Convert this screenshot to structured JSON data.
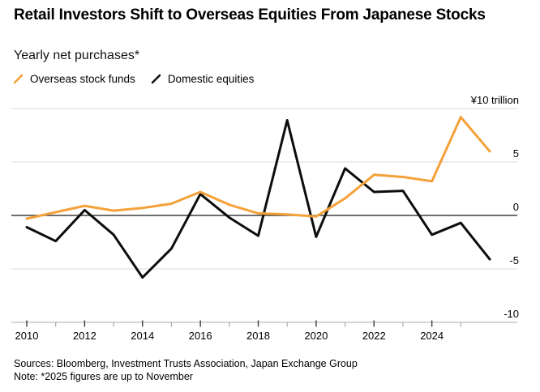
{
  "header": {
    "title": "Retail Investors Shift to Overseas Equities From Japanese Stocks",
    "subtitle": "Yearly net purchases*"
  },
  "legend": {
    "items": [
      {
        "label": "Overseas stock funds",
        "color": "#F4A13A"
      },
      {
        "label": "Domestic equities",
        "color": "#0D0D0D"
      }
    ]
  },
  "footer": {
    "sources": "Sources: Bloomberg, Investment Trusts Association, Japan Exchange Group",
    "note": "Note: *2025 figures are up to November"
  },
  "chart_data": {
    "type": "line",
    "title": "Retail Investors Shift to Overseas Equities From Japanese Stocks",
    "subtitle": "Yearly net purchases*",
    "unit_label": "¥10 trillion",
    "ylim": [
      -10,
      10
    ],
    "grid": "horizontal",
    "legend_position": "top-left",
    "x_axis_tick_labels": [
      "2010",
      "2012",
      "2014",
      "2016",
      "2018",
      "2020",
      "2022",
      "2024"
    ],
    "x_minor_tick_years": [
      "2011",
      "2013",
      "2015",
      "2017",
      "2019",
      "2021",
      "2023",
      "2025"
    ],
    "y_ticks": [
      {
        "value": 10,
        "label": "¥10 trillion"
      },
      {
        "value": 5,
        "label": "5"
      },
      {
        "value": 0,
        "label": "0"
      },
      {
        "value": -5,
        "label": "-5"
      },
      {
        "value": -10,
        "label": "-10"
      }
    ],
    "x_points": [
      "2009",
      "2010",
      "2011",
      "2012",
      "2013",
      "2014",
      "2015",
      "2016",
      "2017",
      "2018",
      "2019",
      "2020",
      "2021",
      "2022",
      "2023",
      "2024",
      "2025 (Jan–Nov)"
    ],
    "x_note": "17 yearly points plotted at year-end positions; final point is 2025 through November",
    "series": [
      {
        "name": "Domestic equities",
        "color": "#0D0D0D",
        "values": [
          -1.1,
          -2.4,
          0.5,
          -1.8,
          -5.8,
          -3.1,
          2.0,
          -0.2,
          -1.9,
          8.9,
          -2.0,
          4.4,
          2.2,
          2.3,
          -1.8,
          -0.7,
          -4.1
        ]
      },
      {
        "name": "Overseas stock funds",
        "color": "#F4A13A",
        "values": [
          -0.3,
          0.3,
          0.9,
          0.45,
          0.7,
          1.1,
          2.2,
          1.0,
          0.2,
          0.1,
          -0.1,
          1.6,
          3.8,
          3.6,
          3.2,
          9.2,
          6.0
        ]
      }
    ],
    "colors": {
      "gridline": "#DBDBDB",
      "zero_line": "#3F3F3F",
      "axis_line": "#C8C8C8",
      "major_tick": "#3C3C3C",
      "minor_tick": "#ABABAB",
      "label_text": "#000000"
    }
  }
}
